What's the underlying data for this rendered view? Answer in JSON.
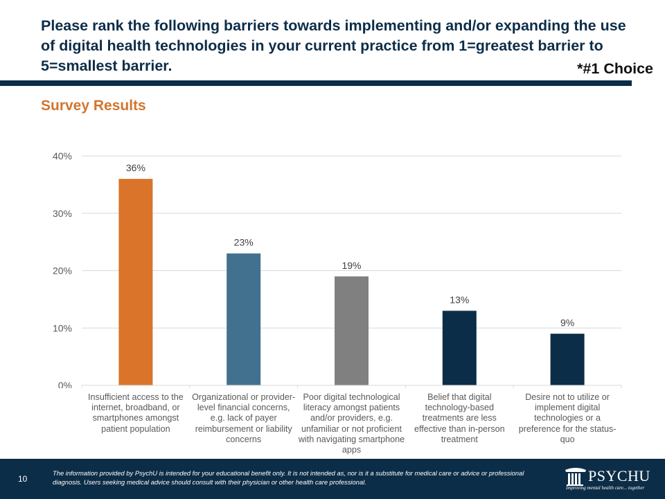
{
  "header": {
    "title": "Please rank the following barriers towards implementing and/or expanding the use of digital health technologies in your current practice from 1=greatest barrier to 5=smallest barrier.",
    "choice_note": "*#1 Choice",
    "subtitle": "Survey Results"
  },
  "colors": {
    "navy": "#0c2d47",
    "orange": "#d9742a",
    "steel_blue": "#41718f",
    "gray": "#808080",
    "subtitle_orange": "#d2752e"
  },
  "chart_data": {
    "type": "bar",
    "title": "Survey Results",
    "xlabel": "",
    "ylabel": "",
    "ylim": [
      0,
      40
    ],
    "yticks": [
      0,
      10,
      20,
      30,
      40
    ],
    "ytick_labels": [
      "0%",
      "10%",
      "20%",
      "30%",
      "40%"
    ],
    "grid": true,
    "legend": "none",
    "categories": [
      "Insufficient access to the internet, broadband, or smartphones amongst patient population",
      "Organizational or provider-level financial concerns, e.g. lack of payer reimbursement or liability concerns",
      "Poor digital technological literacy amongst patients and/or providers, e.g. unfamiliar or not proficient with navigating smartphone apps",
      "Belief that digital technology-based treatments are less effective than in-person treatment",
      "Desire not to utilize or implement digital technologies or a preference for the status-quo"
    ],
    "values": [
      36,
      23,
      19,
      13,
      9
    ],
    "data_labels": [
      "36%",
      "23%",
      "19%",
      "13%",
      "9%"
    ],
    "bar_colors": [
      "#d9742a",
      "#41718f",
      "#808080",
      "#0c2d47",
      "#0c2d47"
    ]
  },
  "footer": {
    "page_number": "10",
    "disclaimer": "The information provided by PsychU is intended for your educational benefit only. It is not intended as, nor is it a substitute for medical care or advice or professional diagnosis. Users seeking medical advice should consult with their physician or other health care professional.",
    "logo_text": "PSYCHU",
    "logo_tagline": "Improving mental health care... together"
  }
}
